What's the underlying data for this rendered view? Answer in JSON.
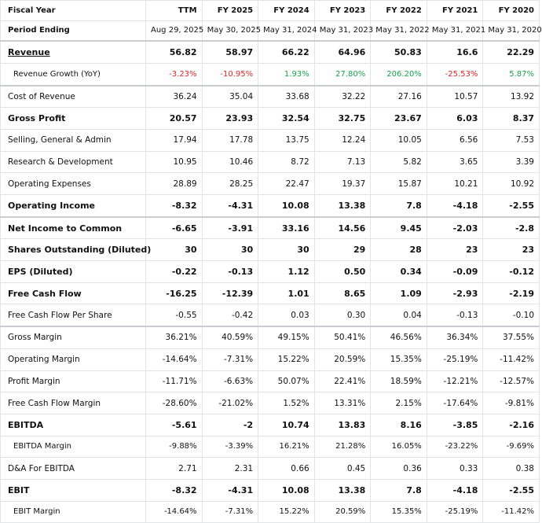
{
  "header": {
    "label": "Fiscal Year",
    "columns": [
      "TTM",
      "FY 2025",
      "FY 2024",
      "FY 2023",
      "FY 2022",
      "FY 2021",
      "FY 2020"
    ]
  },
  "period": {
    "label": "Period Ending",
    "columns": [
      "Aug 29, 2025",
      "May 30, 2025",
      "May 31, 2024",
      "May 31, 2023",
      "May 31, 2022",
      "May 31, 2021",
      "May 31, 2020"
    ]
  },
  "rows": [
    {
      "label": "Revenue",
      "values": [
        "56.82",
        "58.97",
        "66.22",
        "64.96",
        "50.83",
        "16.6",
        "22.29"
      ]
    },
    {
      "label": "Revenue Growth (YoY)",
      "values": [
        "-3.23%",
        "-10.95%",
        "1.93%",
        "27.80%",
        "206.20%",
        "-25.53%",
        "5.87%"
      ]
    },
    {
      "label": "Cost of Revenue",
      "values": [
        "36.24",
        "35.04",
        "33.68",
        "32.22",
        "27.16",
        "10.57",
        "13.92"
      ]
    },
    {
      "label": "Gross Profit",
      "values": [
        "20.57",
        "23.93",
        "32.54",
        "32.75",
        "23.67",
        "6.03",
        "8.37"
      ]
    },
    {
      "label": "Selling, General & Admin",
      "values": [
        "17.94",
        "17.78",
        "13.75",
        "12.24",
        "10.05",
        "6.56",
        "7.53"
      ]
    },
    {
      "label": "Research & Development",
      "values": [
        "10.95",
        "10.46",
        "8.72",
        "7.13",
        "5.82",
        "3.65",
        "3.39"
      ]
    },
    {
      "label": "Operating Expenses",
      "values": [
        "28.89",
        "28.25",
        "22.47",
        "19.37",
        "15.87",
        "10.21",
        "10.92"
      ]
    },
    {
      "label": "Operating Income",
      "values": [
        "-8.32",
        "-4.31",
        "10.08",
        "13.38",
        "7.8",
        "-4.18",
        "-2.55"
      ]
    },
    {
      "label": "Net Income to Common",
      "values": [
        "-6.65",
        "-3.91",
        "33.16",
        "14.56",
        "9.45",
        "-2.03",
        "-2.8"
      ]
    },
    {
      "label": "Shares Outstanding (Diluted)",
      "values": [
        "30",
        "30",
        "30",
        "29",
        "28",
        "23",
        "23"
      ]
    },
    {
      "label": "EPS (Diluted)",
      "values": [
        "-0.22",
        "-0.13",
        "1.12",
        "0.50",
        "0.34",
        "-0.09",
        "-0.12"
      ]
    },
    {
      "label": "Free Cash Flow",
      "values": [
        "-16.25",
        "-12.39",
        "1.01",
        "8.65",
        "1.09",
        "-2.93",
        "-2.19"
      ]
    },
    {
      "label": "Free Cash Flow Per Share",
      "values": [
        "-0.55",
        "-0.42",
        "0.03",
        "0.30",
        "0.04",
        "-0.13",
        "-0.10"
      ]
    },
    {
      "label": "Gross Margin",
      "values": [
        "36.21%",
        "40.59%",
        "49.15%",
        "50.41%",
        "46.56%",
        "36.34%",
        "37.55%"
      ]
    },
    {
      "label": "Operating Margin",
      "values": [
        "-14.64%",
        "-7.31%",
        "15.22%",
        "20.59%",
        "15.35%",
        "-25.19%",
        "-11.42%"
      ]
    },
    {
      "label": "Profit Margin",
      "values": [
        "-11.71%",
        "-6.63%",
        "50.07%",
        "22.41%",
        "18.59%",
        "-12.21%",
        "-12.57%"
      ]
    },
    {
      "label": "Free Cash Flow Margin",
      "values": [
        "-28.60%",
        "-21.02%",
        "1.52%",
        "13.31%",
        "2.15%",
        "-17.64%",
        "-9.81%"
      ]
    },
    {
      "label": "EBITDA",
      "values": [
        "-5.61",
        "-2",
        "10.74",
        "13.83",
        "8.16",
        "-3.85",
        "-2.16"
      ]
    },
    {
      "label": "EBITDA Margin",
      "values": [
        "-9.88%",
        "-3.39%",
        "16.21%",
        "21.28%",
        "16.05%",
        "-23.22%",
        "-9.69%"
      ]
    },
    {
      "label": "D&A For EBITDA",
      "values": [
        "2.71",
        "2.31",
        "0.66",
        "0.45",
        "0.36",
        "0.33",
        "0.38"
      ]
    },
    {
      "label": "EBIT",
      "values": [
        "-8.32",
        "-4.31",
        "10.08",
        "13.38",
        "7.8",
        "-4.18",
        "-2.55"
      ]
    },
    {
      "label": "EBIT Margin",
      "values": [
        "-14.64%",
        "-7.31%",
        "15.22%",
        "20.59%",
        "15.35%",
        "-25.19%",
        "-11.42%"
      ]
    }
  ]
}
